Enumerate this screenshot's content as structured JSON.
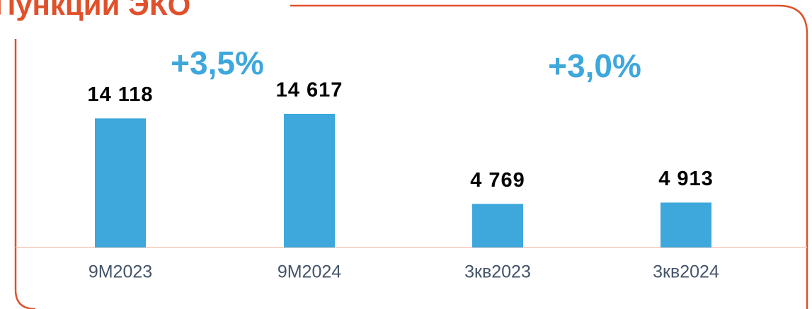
{
  "chart_data": {
    "type": "bar",
    "title": "Пункции ЭКО",
    "categories": [
      "9M2023",
      "9M2024",
      "3кв2023",
      "3кв2024"
    ],
    "values": [
      14118,
      14617,
      4769,
      4913
    ],
    "value_labels": [
      "14 118",
      "14 617",
      "4 769",
      "4 913"
    ],
    "color": "#3ea7dc",
    "ylim": [
      0,
      15000
    ],
    "annotations": [
      "+3,5%",
      "+3,0%"
    ]
  }
}
